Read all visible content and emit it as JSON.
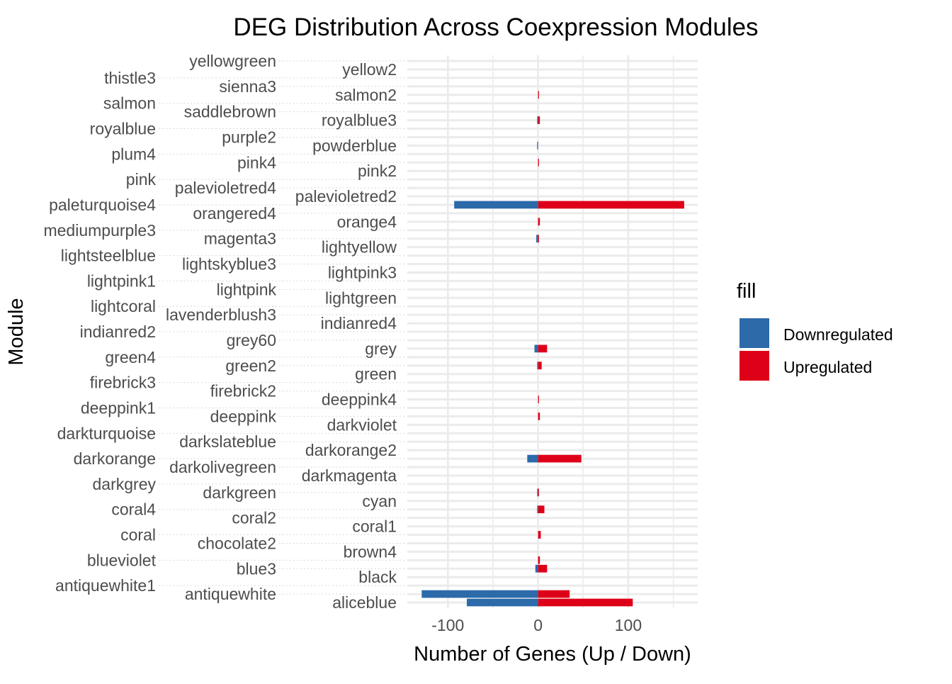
{
  "chart_data": {
    "type": "bar",
    "orientation": "horizontal",
    "title": "DEG Distribution Across Coexpression Modules",
    "xlabel": "Number of Genes (Up / Down)",
    "ylabel": "Module",
    "xlim": [
      -145,
      177
    ],
    "x_ticks": [
      -100,
      0,
      100
    ],
    "x_tick_labels": [
      "-100",
      "0",
      "100"
    ],
    "grid": true,
    "legend": {
      "title": "fill",
      "placement": "right"
    },
    "categories": [
      "aliceblue",
      "antiquewhite",
      "antiquewhite1",
      "black",
      "blue3",
      "blueviolet",
      "brown4",
      "chocolate2",
      "coral",
      "coral1",
      "coral2",
      "coral4",
      "cyan",
      "darkgreen",
      "darkgrey",
      "darkmagenta",
      "darkolivegreen",
      "darkorange",
      "darkorange2",
      "darkslateblue",
      "darkturquoise",
      "darkviolet",
      "deeppink",
      "deeppink1",
      "deeppink4",
      "firebrick2",
      "firebrick3",
      "green",
      "green2",
      "green4",
      "grey",
      "grey60",
      "indianred2",
      "indianred4",
      "lavenderblush3",
      "lightcoral",
      "lightgreen",
      "lightpink",
      "lightpink1",
      "lightpink3",
      "lightskyblue3",
      "lightsteelblue",
      "lightyellow",
      "magenta3",
      "mediumpurple3",
      "orange4",
      "orangered4",
      "paleturquoise4",
      "palevioletred2",
      "palevioletred4",
      "pink",
      "pink2",
      "pink4",
      "plum4",
      "powderblue",
      "purple2",
      "royalblue",
      "royalblue3",
      "saddlebrown",
      "salmon",
      "salmon2",
      "sienna3",
      "thistle3",
      "yellow2",
      "yellowgreen"
    ],
    "series": [
      {
        "name": "Downregulated",
        "color": "#2C6AA9",
        "values": [
          -79,
          -129,
          0,
          0,
          -3,
          0,
          0,
          0,
          0,
          0,
          0,
          -1,
          0,
          -1,
          0,
          0,
          0,
          -12,
          0,
          0,
          0,
          0,
          0,
          0,
          0,
          0,
          0,
          0,
          -1,
          0,
          -4,
          0,
          0,
          0,
          0,
          0,
          0,
          0,
          0,
          0,
          0,
          0,
          0,
          -2,
          0,
          0,
          0,
          -93,
          0,
          0,
          0,
          0,
          0,
          0,
          -1,
          0,
          0,
          -1,
          0,
          0,
          0,
          0,
          0,
          0,
          0
        ]
      },
      {
        "name": "Upregulated",
        "color": "#DE0018",
        "values": [
          105,
          35,
          0,
          0,
          10,
          2,
          0,
          0,
          3,
          0,
          0,
          7,
          0,
          1,
          0,
          0,
          0,
          48,
          0,
          0,
          0,
          0,
          2,
          0,
          1,
          0,
          0,
          0,
          4,
          0,
          10,
          0,
          0,
          0,
          0,
          0,
          0,
          0,
          0,
          0,
          0,
          0,
          0,
          1,
          0,
          2,
          0,
          162,
          0,
          0,
          0,
          0,
          1,
          0,
          0,
          0,
          0,
          2,
          0,
          0,
          1,
          0,
          0,
          0,
          0
        ]
      }
    ]
  }
}
